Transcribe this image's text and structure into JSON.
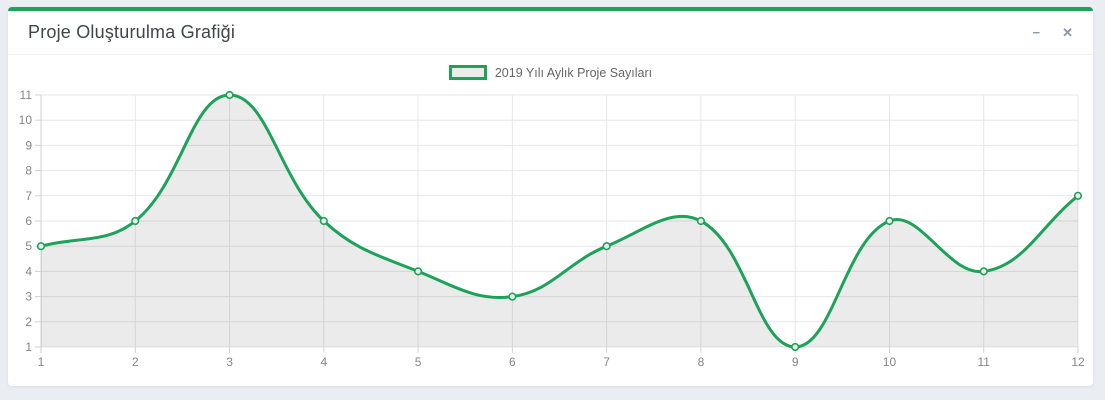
{
  "panel": {
    "title": "Proje Oluşturulma Grafiği",
    "minimize_icon": "−",
    "close_icon": "✕"
  },
  "legend": {
    "label": "2019 Yılı Aylık Proje Sayıları"
  },
  "chart_data": {
    "type": "line",
    "x": [
      1,
      2,
      3,
      4,
      5,
      6,
      7,
      8,
      9,
      10,
      11,
      12
    ],
    "series": [
      {
        "name": "2019 Yılı Aylık Proje Sayıları",
        "values": [
          5,
          6,
          11,
          6,
          4,
          3,
          5,
          6,
          1,
          6,
          4,
          7
        ]
      }
    ],
    "title": "",
    "xlabel": "",
    "ylabel": "",
    "ylim": [
      1,
      11
    ],
    "yticks": [
      1,
      2,
      3,
      4,
      5,
      6,
      7,
      8,
      9,
      10,
      11
    ],
    "grid": true,
    "legend_position": "top-center",
    "smooth_tension": 0.4,
    "line_color": "#1da25a",
    "fill_color": "rgba(0,0,0,0.08)",
    "marker_fill": "#ebebeb",
    "grid_color": "#e7e7e7",
    "axis_color": "#d2d2d2",
    "tick_text_color": "#858585"
  }
}
